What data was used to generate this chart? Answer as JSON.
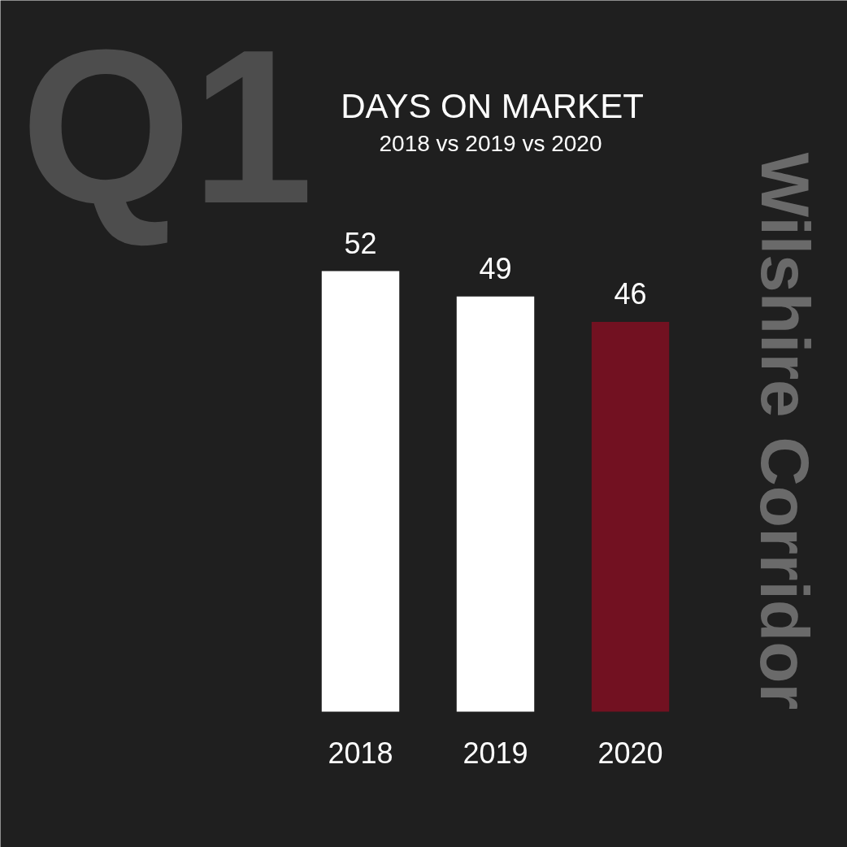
{
  "chart_data": {
    "type": "bar",
    "title": "DAYS ON MARKET",
    "subtitle": "2018 vs 2019 vs 2020",
    "annotations": [
      "Q1",
      "Wilshire Corridor"
    ],
    "categories": [
      "2018",
      "2019",
      "2020"
    ],
    "values": [
      52,
      49,
      46
    ],
    "colors": [
      "#ffffff",
      "#ffffff",
      "#721121"
    ],
    "tick_labels": "x",
    "data_labels": true,
    "grid": false
  }
}
